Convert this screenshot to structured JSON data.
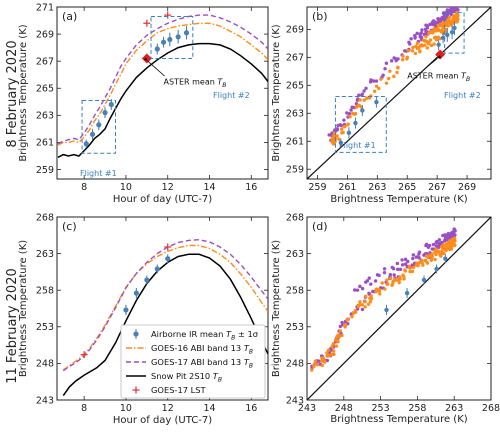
{
  "figure": {
    "row_labels": [
      "8 February 2020",
      "11 February 2020"
    ],
    "colors": {
      "airborne": "#4a7fb8",
      "goes16": "#ff8c1a",
      "goes17": "#9b4fc4",
      "snowpit": "#000000",
      "goes17_lst": "#e03a3a",
      "aster": "#e0201f",
      "flight_box": "#3a7fbf"
    },
    "legend": [
      {
        "label": "Airborne IR mean T_B ± 1σ",
        "series": "airborne"
      },
      {
        "label": "GOES-16 ABI band 13 T_B",
        "series": "goes16"
      },
      {
        "label": "GOES-17 ABI band 13 T_B",
        "series": "goes17"
      },
      {
        "label": "Snow Pit 2S10 T_B",
        "series": "snowpit"
      },
      {
        "label": "GOES-17 LST",
        "series": "goes17_lst"
      }
    ]
  },
  "chart_data": [
    {
      "panel": "(a)",
      "type": "line",
      "xlabel": "Hour of day (UTC-7)",
      "ylabel": "Brightness Temperature (K)",
      "xlim": [
        6.7,
        16.8
      ],
      "ylim": [
        258.3,
        271
      ],
      "xticks": [
        8,
        10,
        12,
        14,
        16
      ],
      "yticks": [
        259,
        261,
        263,
        265,
        267,
        269,
        271
      ],
      "series": [
        {
          "name": "Snow Pit 2S10 T_B",
          "key": "snowpit",
          "style": "solid",
          "x": [
            6.75,
            7.0,
            7.25,
            7.5,
            7.75,
            8.0,
            8.25,
            8.5,
            8.75,
            9.0,
            9.25,
            9.5,
            9.75,
            10.0,
            10.5,
            11.0,
            11.5,
            12.0,
            12.5,
            13.0,
            13.5,
            14.0,
            14.5,
            15.0,
            15.5,
            16.0,
            16.5,
            16.8
          ],
          "y": [
            259.9,
            260.1,
            260.0,
            260.1,
            260.0,
            260.4,
            260.8,
            261.3,
            261.6,
            262.0,
            262.8,
            263.5,
            264.2,
            264.8,
            265.8,
            266.5,
            267.1,
            267.6,
            268.0,
            268.2,
            268.3,
            268.3,
            268.2,
            267.9,
            267.4,
            266.8,
            266.1,
            265.5
          ]
        },
        {
          "name": "GOES-16 ABI band 13 T_B",
          "key": "goes16",
          "style": "dashdot",
          "x": [
            6.75,
            7.0,
            7.25,
            7.5,
            7.75,
            8.0,
            8.25,
            8.5,
            8.75,
            9.0,
            9.25,
            9.5,
            9.75,
            10.0,
            10.5,
            11.0,
            11.5,
            12.0,
            12.5,
            13.0,
            13.5,
            14.0,
            14.5,
            15.0,
            15.5,
            16.0,
            16.5,
            16.8
          ],
          "y": [
            260.8,
            261.0,
            261.0,
            261.1,
            261.0,
            261.4,
            261.9,
            262.6,
            263.1,
            263.8,
            264.5,
            265.3,
            266.0,
            266.8,
            267.8,
            268.5,
            269.1,
            269.4,
            269.6,
            269.7,
            269.8,
            269.8,
            269.6,
            269.2,
            268.8,
            268.2,
            267.6,
            267.1
          ]
        },
        {
          "name": "GOES-17 ABI band 13 T_B",
          "key": "goes17",
          "style": "dashed",
          "x": [
            6.75,
            7.0,
            7.25,
            7.5,
            7.75,
            8.0,
            8.25,
            8.5,
            8.75,
            9.0,
            9.25,
            9.5,
            9.75,
            10.0,
            10.5,
            11.0,
            11.5,
            12.0,
            12.5,
            13.0,
            13.5,
            14.0,
            14.5,
            15.0,
            15.5,
            16.0,
            16.5,
            16.8
          ],
          "y": [
            260.9,
            261.1,
            261.2,
            261.3,
            261.2,
            261.7,
            262.3,
            263.0,
            263.6,
            264.3,
            265.0,
            265.8,
            266.6,
            267.2,
            268.2,
            268.9,
            269.4,
            269.8,
            270.1,
            270.3,
            270.4,
            270.4,
            270.2,
            269.9,
            269.5,
            269.0,
            268.4,
            267.9
          ]
        },
        {
          "name": "Airborne IR mean T_B ± 1σ",
          "key": "airborne",
          "style": "errorbar",
          "x": [
            8.1,
            8.4,
            8.7,
            9.0,
            9.3,
            11.5,
            11.8,
            12.1,
            12.5,
            12.9
          ],
          "y": [
            260.9,
            261.6,
            262.3,
            263.2,
            263.8,
            267.9,
            268.4,
            268.6,
            268.8,
            269.1
          ],
          "err": [
            0.3,
            0.4,
            0.4,
            0.4,
            0.4,
            0.4,
            0.4,
            0.5,
            0.5,
            0.5
          ]
        },
        {
          "name": "GOES-17 LST",
          "key": "goes17_lst",
          "style": "plus",
          "x": [
            11.0,
            12.0
          ],
          "y": [
            269.8,
            270.4
          ]
        },
        {
          "name": "ASTER mean T_B",
          "key": "aster",
          "style": "diamond",
          "x": [
            11.0
          ],
          "y": [
            267.2
          ]
        }
      ],
      "boxes": [
        {
          "label": "Flight #1",
          "x": [
            7.9,
            9.5
          ],
          "y": [
            260.2,
            264.1
          ]
        },
        {
          "label": "Flight #2",
          "x": [
            11.2,
            13.2
          ],
          "y": [
            267.2,
            270.3
          ]
        }
      ],
      "annotations": [
        {
          "text": "ASTER mean T_B",
          "x": 11.8,
          "y": 265.8
        }
      ]
    },
    {
      "panel": "(b)",
      "type": "scatter",
      "xlabel": "Brightness Temperature (K)",
      "ylabel": "Brightness Temperature (K)",
      "xlim": [
        258.3,
        270.6
      ],
      "ylim": [
        258.3,
        270.6
      ],
      "xticks": [
        259,
        261,
        263,
        265,
        267,
        269
      ],
      "yticks": [
        259,
        261,
        263,
        265,
        267,
        269
      ],
      "one_to_one_line": true,
      "boxes": [
        {
          "label": "Flight #1",
          "x": [
            260.2,
            263.6
          ],
          "y": [
            260.2,
            264.2
          ]
        },
        {
          "label": "Flight #2",
          "x": [
            267.5,
            268.8
          ],
          "y": [
            267.3,
            270.2
          ]
        }
      ],
      "annotations": [
        {
          "text": "ASTER mean T_B",
          "x": 265.4,
          "y": 266.1
        }
      ],
      "aster": {
        "x": 267.2,
        "y": 267.2
      }
    },
    {
      "panel": "(c)",
      "type": "line",
      "xlabel": "Hour of day (UTC-7)",
      "ylabel": "Brightness Temperature (K)",
      "xlim": [
        6.7,
        16.8
      ],
      "ylim": [
        243,
        268
      ],
      "xticks": [
        8,
        10,
        12,
        14,
        16
      ],
      "yticks": [
        243,
        248,
        253,
        258,
        263,
        268
      ],
      "series": [
        {
          "name": "Snow Pit 2S10 T_B",
          "key": "snowpit",
          "style": "solid",
          "x": [
            7.0,
            7.3,
            7.6,
            8.0,
            8.3,
            8.6,
            9.0,
            9.5,
            10.0,
            10.5,
            11.0,
            11.5,
            12.0,
            12.5,
            13.0,
            13.5,
            14.0,
            14.5,
            15.0,
            15.5,
            16.0,
            16.5,
            16.8
          ],
          "y": [
            243.6,
            244.8,
            245.6,
            246.4,
            246.9,
            247.4,
            248.4,
            250.8,
            253.8,
            256.6,
            258.9,
            260.6,
            261.8,
            262.6,
            262.9,
            262.9,
            262.4,
            261.3,
            259.5,
            257.0,
            254.1,
            251.0,
            249.3
          ]
        },
        {
          "name": "GOES-16 ABI band 13 T_B",
          "key": "goes16",
          "style": "dashdot",
          "x": [
            7.0,
            7.3,
            7.6,
            8.0,
            8.3,
            8.6,
            9.0,
            9.5,
            10.0,
            10.5,
            11.0,
            11.5,
            12.0,
            12.5,
            13.0,
            13.5,
            14.0,
            14.5,
            15.0,
            15.5,
            16.0,
            16.5,
            16.8
          ],
          "y": [
            247.1,
            247.7,
            248.3,
            249.2,
            250.2,
            251.4,
            253.2,
            255.8,
            258.4,
            260.3,
            261.6,
            262.6,
            263.3,
            263.8,
            264.1,
            264.1,
            263.7,
            262.9,
            261.8,
            260.2,
            258.4,
            256.3,
            255.1
          ]
        },
        {
          "name": "GOES-17 ABI band 13 T_B",
          "key": "goes17",
          "style": "dashed",
          "x": [
            7.0,
            7.3,
            7.6,
            8.0,
            8.3,
            8.6,
            9.0,
            9.5,
            10.0,
            10.5,
            11.0,
            11.5,
            12.0,
            12.5,
            13.0,
            13.5,
            14.0,
            14.5,
            15.0,
            15.5,
            16.0,
            16.5,
            16.8
          ],
          "y": [
            247.0,
            247.6,
            248.1,
            249.0,
            250.0,
            251.2,
            253.0,
            255.6,
            258.3,
            260.3,
            261.8,
            263.0,
            263.9,
            264.5,
            264.8,
            264.9,
            264.6,
            263.9,
            262.9,
            261.5,
            259.8,
            257.9,
            256.8
          ]
        },
        {
          "name": "Airborne IR mean T_B ± 1σ",
          "key": "airborne",
          "style": "errorbar",
          "x": [
            10.0,
            10.5,
            11.0,
            11.5,
            12.0
          ],
          "y": [
            255.3,
            257.6,
            259.4,
            260.9,
            262.3
          ],
          "err": [
            0.7,
            0.7,
            0.6,
            0.6,
            0.6
          ]
        },
        {
          "name": "GOES-17 LST",
          "key": "goes17_lst",
          "style": "plus",
          "x": [
            8.0,
            12.0
          ],
          "y": [
            249.2,
            263.9
          ]
        }
      ]
    },
    {
      "panel": "(d)",
      "type": "scatter",
      "xlabel": "Brightness Temperature (K)",
      "ylabel": "Brightness Temperature (K)",
      "xlim": [
        243,
        268
      ],
      "ylim": [
        243,
        268
      ],
      "xticks": [
        243,
        248,
        253,
        258,
        263,
        268
      ],
      "yticks": [
        243,
        248,
        253,
        258,
        263,
        268
      ],
      "one_to_one_line": true
    }
  ]
}
